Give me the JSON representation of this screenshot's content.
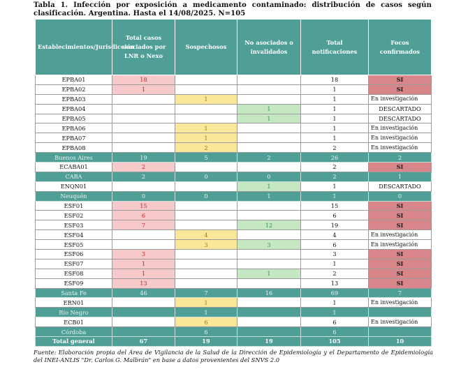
{
  "title": "Tabla 1. Infección por exposición a medicamento contaminado: distribución de casos según clasificación. Argentina. Hasta el 14/08/2025. N=105",
  "headers": [
    "Establecimientos/Jurisdicción",
    "Total casos asociados por LNR o Nexo",
    "Sospechosos",
    "No asociados o invalidados",
    "Total notificaciones",
    "Focos confirmados"
  ],
  "rows": [
    {
      "type": "data",
      "cells": [
        "EPBA01",
        "18",
        "",
        "",
        "18",
        "SI"
      ],
      "styles": [
        "",
        "pink",
        "",
        "",
        "",
        "red"
      ]
    },
    {
      "type": "data",
      "cells": [
        "EPBA02",
        "1",
        "",
        "",
        "1",
        "SI"
      ],
      "styles": [
        "",
        "pink",
        "",
        "",
        "",
        "red"
      ]
    },
    {
      "type": "data",
      "cells": [
        "EPBA03",
        "",
        "1",
        "",
        "1",
        "En investigación"
      ],
      "styles": [
        "",
        "",
        "yellow",
        "",
        "",
        "inv"
      ]
    },
    {
      "type": "data",
      "cells": [
        "EPBA04",
        "",
        "",
        "1",
        "1",
        "DESCARTADO"
      ],
      "styles": [
        "",
        "",
        "",
        "green",
        "",
        ""
      ]
    },
    {
      "type": "data",
      "cells": [
        "EPBA05",
        "",
        "",
        "1",
        "1",
        "DESCARTADO"
      ],
      "styles": [
        "",
        "",
        "",
        "green",
        "",
        ""
      ]
    },
    {
      "type": "data",
      "cells": [
        "EPBA06",
        "",
        "1",
        "",
        "1",
        "En investigación"
      ],
      "styles": [
        "",
        "",
        "yellow",
        "",
        "",
        "inv"
      ]
    },
    {
      "type": "data",
      "cells": [
        "EPBA07",
        "",
        "1",
        "",
        "1",
        "En investigación"
      ],
      "styles": [
        "",
        "",
        "yellow",
        "",
        "",
        "inv"
      ]
    },
    {
      "type": "data",
      "cells": [
        "EPBA08",
        "",
        "2",
        "",
        "2",
        "En investigación"
      ],
      "styles": [
        "",
        "",
        "yellow",
        "",
        "",
        "inv"
      ]
    },
    {
      "type": "sub",
      "cells": [
        "Buenos Aires",
        "19",
        "5",
        "2",
        "26",
        "2"
      ]
    },
    {
      "type": "data",
      "cells": [
        "ECABA01",
        "2",
        "",
        "",
        "2",
        "SI"
      ],
      "styles": [
        "",
        "pink",
        "",
        "",
        "",
        "red"
      ]
    },
    {
      "type": "sub",
      "cells": [
        "CABA",
        "2",
        "0",
        "0",
        "2",
        "1"
      ]
    },
    {
      "type": "data",
      "cells": [
        "ENQN01",
        "",
        "",
        "1",
        "1",
        "DESCARTADO"
      ],
      "styles": [
        "",
        "",
        "",
        "green",
        "",
        ""
      ]
    },
    {
      "type": "sub",
      "cells": [
        "Neuquén",
        "0",
        "0",
        "1",
        "1",
        "0"
      ]
    },
    {
      "type": "data",
      "cells": [
        "ESF01",
        "15",
        "",
        "",
        "15",
        "SI"
      ],
      "styles": [
        "",
        "pink",
        "",
        "",
        "",
        "red"
      ]
    },
    {
      "type": "data",
      "cells": [
        "ESF02",
        "6",
        "",
        "",
        "6",
        "SI"
      ],
      "styles": [
        "",
        "pink",
        "",
        "",
        "",
        "red"
      ]
    },
    {
      "type": "data",
      "cells": [
        "ESF03",
        "7",
        "",
        "12",
        "19",
        "SI"
      ],
      "styles": [
        "",
        "pink",
        "",
        "green",
        "",
        "red"
      ]
    },
    {
      "type": "data",
      "cells": [
        "ESF04",
        "",
        "4",
        "",
        "4",
        "En investigación"
      ],
      "styles": [
        "",
        "",
        "yellow",
        "",
        "",
        "inv"
      ]
    },
    {
      "type": "data",
      "cells": [
        "ESF05",
        "",
        "3",
        "3",
        "6",
        "En investigación"
      ],
      "styles": [
        "",
        "",
        "yellow",
        "green",
        "",
        "inv"
      ]
    },
    {
      "type": "data",
      "cells": [
        "ESF06",
        "3",
        "",
        "",
        "3",
        "SI"
      ],
      "styles": [
        "",
        "pink",
        "",
        "",
        "",
        "red"
      ]
    },
    {
      "type": "data",
      "cells": [
        "ESF07",
        "1",
        "",
        "",
        "1",
        "SI"
      ],
      "styles": [
        "",
        "pink",
        "",
        "",
        "",
        "red"
      ]
    },
    {
      "type": "data",
      "cells": [
        "ESF08",
        "1",
        "",
        "1",
        "2",
        "SI"
      ],
      "styles": [
        "",
        "pink",
        "",
        "green",
        "",
        "red"
      ]
    },
    {
      "type": "data",
      "cells": [
        "ESF09",
        "13",
        "",
        "",
        "13",
        "SI"
      ],
      "styles": [
        "",
        "pink",
        "",
        "",
        "",
        "red"
      ]
    },
    {
      "type": "sub",
      "cells": [
        "Santa Fe",
        "46",
        "7",
        "16",
        "69",
        "7"
      ]
    },
    {
      "type": "data",
      "cells": [
        "ERN01",
        "",
        "1",
        "",
        "1",
        "En investigación"
      ],
      "styles": [
        "",
        "",
        "yellow",
        "",
        "",
        "inv"
      ]
    },
    {
      "type": "sub",
      "cells": [
        "Río Negro",
        "",
        "1",
        "",
        "1",
        ""
      ]
    },
    {
      "type": "data",
      "cells": [
        "ECB01",
        "",
        "6",
        "",
        "6",
        "En investigación"
      ],
      "styles": [
        "",
        "",
        "yellow",
        "",
        "",
        "inv"
      ]
    },
    {
      "type": "sub",
      "cells": [
        "Córdoba",
        "",
        "6",
        "",
        "6",
        ""
      ]
    },
    {
      "type": "total",
      "cells": [
        "Total general",
        "67",
        "19",
        "19",
        "105",
        "10"
      ]
    }
  ],
  "footer": "Fuente: Elaboración propia del Área de Vigilancia de la Salud de la Dirección de Epidemiología y el Departamento de Epidemiología del INEI-ANLIS \"Dr. Carlos G. Malbrán\" en base a datos provenientes del SNVS 2.0",
  "colors": {
    "header_bg": "#4f9f97",
    "confirmed_cases": "#f6c9cb",
    "suspected": "#fbe79a",
    "not_associated": "#c5e8c3",
    "focus_confirmed": "#d9868a"
  }
}
